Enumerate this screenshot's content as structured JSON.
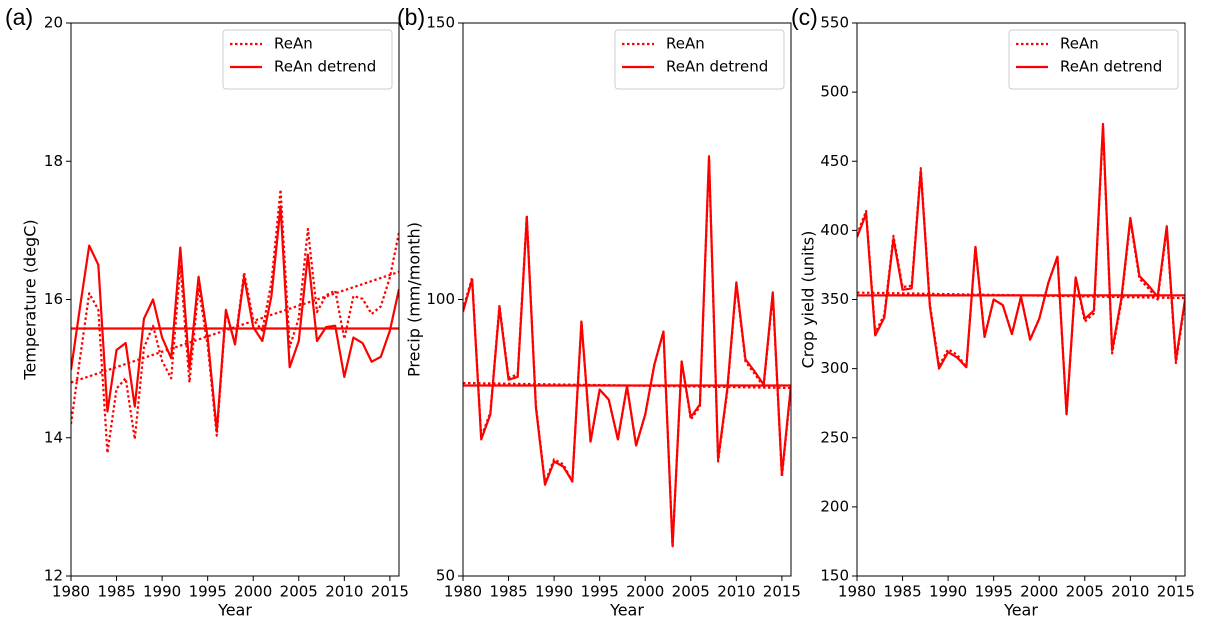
{
  "chart_data": [
    {
      "type": "line",
      "panel_label": "(a)",
      "xlabel": "Year",
      "ylabel": "Temperature (degC)",
      "x": [
        1980,
        1981,
        1982,
        1983,
        1984,
        1985,
        1986,
        1987,
        1988,
        1989,
        1990,
        1991,
        1992,
        1993,
        1994,
        1995,
        1996,
        1997,
        1998,
        1999,
        2000,
        2001,
        2002,
        2003,
        2004,
        2005,
        2006,
        2007,
        2008,
        2009,
        2010,
        2011,
        2012,
        2013,
        2014,
        2015,
        2016
      ],
      "xlim": [
        1980,
        2016
      ],
      "xticks": [
        1980,
        1985,
        1990,
        1995,
        2000,
        2005,
        2010,
        2015
      ],
      "ylim": [
        12,
        20
      ],
      "yticks": [
        12,
        14,
        16,
        18,
        20
      ],
      "legend": "upper right",
      "series": [
        {
          "name": "ReAn",
          "color": "#ff0000",
          "style": "dotted",
          "values": [
            14.2,
            15.16,
            16.09,
            15.85,
            13.78,
            14.71,
            14.86,
            13.98,
            15.3,
            15.62,
            15.11,
            14.86,
            16.5,
            14.8,
            16.17,
            15.34,
            14.03,
            15.82,
            15.37,
            16.39,
            15.71,
            15.55,
            16.25,
            17.59,
            15.31,
            15.73,
            17.02,
            15.82,
            16.06,
            16.13,
            15.43,
            16.05,
            16.01,
            15.79,
            15.9,
            16.32,
            16.97
          ]
        },
        {
          "name": "ReAn detrend",
          "color": "#ff0000",
          "style": "solid",
          "values": [
            14.98,
            15.9,
            16.78,
            16.5,
            14.38,
            15.27,
            15.37,
            14.45,
            15.72,
            16.0,
            15.45,
            15.15,
            16.75,
            15.0,
            16.33,
            15.45,
            14.1,
            15.85,
            15.35,
            16.33,
            15.6,
            15.4,
            16.05,
            17.35,
            15.02,
            15.4,
            16.65,
            15.4,
            15.6,
            15.62,
            14.88,
            15.45,
            15.37,
            15.1,
            15.17,
            15.55,
            16.15
          ]
        }
      ],
      "lines": [
        {
          "color": "#ff0000",
          "style": "dotted",
          "x": [
            1980,
            2016
          ],
          "values": [
            14.8,
            16.4
          ]
        },
        {
          "color": "#ff0000",
          "style": "solid",
          "x": [
            1980,
            2016
          ],
          "values": [
            15.58,
            15.58
          ]
        }
      ]
    },
    {
      "type": "line",
      "panel_label": "(b)",
      "xlabel": "Year",
      "ylabel": "Precip (mm/month)",
      "x": [
        1980,
        1981,
        1982,
        1983,
        1984,
        1985,
        1986,
        1987,
        1988,
        1989,
        1990,
        1991,
        1992,
        1993,
        1994,
        1995,
        1996,
        1997,
        1998,
        1999,
        2000,
        2001,
        2002,
        2003,
        2004,
        2005,
        2006,
        2007,
        2008,
        2009,
        2010,
        2011,
        2012,
        2013,
        2014,
        2015,
        2016
      ],
      "xlim": [
        1980,
        2016
      ],
      "xticks": [
        1980,
        1985,
        1990,
        1995,
        2000,
        2005,
        2010,
        2015
      ],
      "ylim": [
        50,
        150
      ],
      "yticks": [
        50,
        100,
        150
      ],
      "legend": "upper right",
      "series": [
        {
          "name": "ReAn",
          "color": "#ff0000",
          "style": "dotted",
          "values": [
            98.2,
            104,
            75.1,
            79.6,
            99,
            85.9,
            86.4,
            115.2,
            80.9,
            66.9,
            71.1,
            70.2,
            67.1,
            96,
            74.3,
            83.7,
            81.9,
            74.7,
            84.3,
            73.6,
            79.2,
            88.2,
            94.2,
            55.4,
            88.8,
            78.3,
            80.6,
            125.5,
            70.7,
            83.3,
            102.7,
            88.8,
            86.6,
            84.2,
            100.9,
            67.9,
            84.2
          ]
        },
        {
          "name": "ReAn detrend",
          "color": "#ff0000",
          "style": "solid",
          "values": [
            97.8,
            103.6,
            74.7,
            79.2,
            98.6,
            85.5,
            86,
            114.8,
            80.5,
            66.5,
            70.7,
            69.8,
            67.1,
            96,
            74.3,
            83.7,
            81.9,
            74.7,
            84.3,
            73.6,
            79.2,
            88.2,
            94.2,
            55.4,
            88.8,
            78.7,
            81,
            125.9,
            71.1,
            83.7,
            103.1,
            89.2,
            87,
            84.6,
            101.3,
            68.3,
            84.6
          ]
        }
      ],
      "lines": [
        {
          "color": "#ff0000",
          "style": "dotted",
          "x": [
            1980,
            2016
          ],
          "values": [
            84.9,
            84.0
          ]
        },
        {
          "color": "#ff0000",
          "style": "solid",
          "x": [
            1980,
            2016
          ],
          "values": [
            84.45,
            84.45
          ]
        }
      ]
    },
    {
      "type": "line",
      "panel_label": "(c)",
      "xlabel": "Year",
      "ylabel": "Crop yield (units)",
      "x": [
        1980,
        1981,
        1982,
        1983,
        1984,
        1985,
        1986,
        1987,
        1988,
        1989,
        1990,
        1991,
        1992,
        1993,
        1994,
        1995,
        1996,
        1997,
        1998,
        1999,
        2000,
        2001,
        2002,
        2003,
        2004,
        2005,
        2006,
        2007,
        2008,
        2009,
        2010,
        2011,
        2012,
        2013,
        2014,
        2015,
        2016
      ],
      "xlim": [
        1980,
        2016
      ],
      "xticks": [
        1980,
        1985,
        1990,
        1995,
        2000,
        2005,
        2010,
        2015
      ],
      "ylim": [
        150,
        550
      ],
      "yticks": [
        150,
        200,
        250,
        300,
        350,
        400,
        450,
        500,
        550
      ],
      "legend": "upper right",
      "series": [
        {
          "name": "ReAn",
          "color": "#ff0000",
          "style": "dotted",
          "values": [
            397,
            414,
            326,
            339,
            396,
            359,
            360,
            445,
            347,
            302,
            314,
            310,
            301,
            388,
            323,
            350,
            346,
            325,
            352,
            321,
            336,
            362,
            381,
            267,
            366,
            334,
            340,
            475,
            311,
            348,
            407,
            365,
            358,
            350,
            401,
            304,
            348
          ]
        },
        {
          "name": "ReAn detrend",
          "color": "#ff0000",
          "style": "solid",
          "values": [
            395,
            412,
            324,
            337,
            394,
            357,
            358,
            443,
            345,
            300,
            312,
            308,
            301,
            388,
            323,
            350,
            346,
            325,
            352,
            321,
            336,
            362,
            381,
            267,
            366,
            336,
            342,
            477,
            313,
            350,
            409,
            367,
            360,
            352,
            403,
            306,
            350
          ]
        }
      ],
      "lines": [
        {
          "color": "#ff0000",
          "style": "dotted",
          "x": [
            1980,
            2016
          ],
          "values": [
            355,
            351
          ]
        },
        {
          "color": "#ff0000",
          "style": "solid",
          "x": [
            1980,
            2016
          ],
          "values": [
            353,
            353
          ]
        }
      ]
    }
  ]
}
